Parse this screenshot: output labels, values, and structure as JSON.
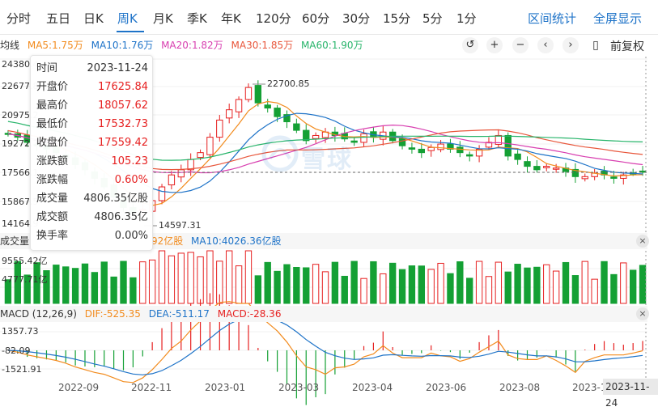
{
  "tabs": [
    {
      "label": "分时",
      "active": false
    },
    {
      "label": "五日",
      "active": false
    },
    {
      "label": "日K",
      "active": false
    },
    {
      "label": "周K",
      "active": true
    },
    {
      "label": "月K",
      "active": false
    },
    {
      "label": "季K",
      "active": false
    },
    {
      "label": "年K",
      "active": false
    },
    {
      "label": "120分",
      "active": false
    },
    {
      "label": "60分",
      "active": false
    },
    {
      "label": "30分",
      "active": false
    },
    {
      "label": "15分",
      "active": false
    },
    {
      "label": "5分",
      "active": false
    },
    {
      "label": "1分",
      "active": false
    }
  ],
  "header_links": {
    "interval_stats": "区间统计",
    "fullscreen": "全屏显示"
  },
  "ma_legend": {
    "label": "均线",
    "items": [
      {
        "text": "MA5:1.75万",
        "color": "#f28b1d"
      },
      {
        "text": "MA10:1.76万",
        "color": "#1e73c8"
      },
      {
        "text": "MA20:1.82万",
        "color": "#d83fb0"
      },
      {
        "text": "MA30:1.85万",
        "color": "#e8563b"
      },
      {
        "text": "MA60:1.90万",
        "color": "#27b46a"
      }
    ]
  },
  "toolbar": {
    "fuquan": "前复权"
  },
  "price_axis": [
    "24380.4",
    "22677.8",
    "20975.2",
    "19272.7",
    "17566.1",
    "15867.5",
    "14164.9"
  ],
  "price_annotations": {
    "high": "22700.85",
    "low": "14597.31"
  },
  "tooltip": [
    {
      "label": "时间",
      "value": "2023-11-24",
      "color": "#333333"
    },
    {
      "label": "开盘价",
      "value": "17625.84",
      "color": "#e62020"
    },
    {
      "label": "最高价",
      "value": "18057.62",
      "color": "#e62020"
    },
    {
      "label": "最低价",
      "value": "17532.73",
      "color": "#e62020"
    },
    {
      "label": "收盘价",
      "value": "17559.42",
      "color": "#e62020"
    },
    {
      "label": "涨跌额",
      "value": "105.23",
      "color": "#e62020"
    },
    {
      "label": "涨跌幅",
      "value": "0.60%",
      "color": "#e62020"
    },
    {
      "label": "成交量",
      "value": "4806.35亿股",
      "color": "#333333"
    },
    {
      "label": "成交额",
      "value": "4806.35亿",
      "color": "#333333"
    },
    {
      "label": "换手率",
      "value": "0.00%",
      "color": "#333333"
    }
  ],
  "volume_legend": {
    "label": "成交量",
    "ma5": "92亿股",
    "ma10": "MA10:4026.36亿股"
  },
  "volume_axis": {
    "top": "9555.42亿",
    "mid": "4777.71亿"
  },
  "macd_legend": {
    "label": "MACD (12,26,9)",
    "dif": "DIF:-525.35",
    "dea": "DEA:-511.17",
    "macd": "MACD:-28.36"
  },
  "macd_axis": [
    "1357.73",
    "-82.09",
    "-1521.91"
  ],
  "x_axis": [
    "2022-09",
    "2022-11",
    "2023-01",
    "2023-03",
    "2023-04",
    "2023-06",
    "2023-08",
    "2023-1"
  ],
  "x_highlight": "2023-11-24",
  "watermark": "雪球",
  "colors": {
    "up": "#e62020",
    "down": "#14a034",
    "accent": "#1e73c8"
  },
  "chart_data": {
    "type": "candlestick",
    "period": "weekly",
    "weeks": 67,
    "last": {
      "date": "2023-11-24",
      "open": 17625.84,
      "high": 18057.62,
      "low": 17532.73,
      "close": 17559.42
    },
    "visible_high": 22700.85,
    "visible_low": 14597.31,
    "ma": {
      "MA5": 17500,
      "MA10": 17600,
      "MA20": 18200,
      "MA30": 18500,
      "MA60": 19000
    },
    "closes": [
      19800,
      19600,
      19300,
      19100,
      18900,
      18700,
      18400,
      18000,
      17700,
      17200,
      16700,
      16100,
      15500,
      15200,
      15400,
      15900,
      16700,
      17400,
      17700,
      18300,
      18700,
      19600,
      20600,
      21200,
      21800,
      22500,
      21600,
      21300,
      20800,
      20500,
      20000,
      19400,
      19700,
      19900,
      19700,
      19500,
      19300,
      19800,
      19600,
      19900,
      19400,
      19100,
      18900,
      18700,
      19000,
      19200,
      18900,
      18700,
      18500,
      18900,
      19300,
      19700,
      18500,
      18300,
      17900,
      17700,
      17900,
      17800,
      17600,
      17300,
      17300,
      17500,
      17400,
      17200,
      17400,
      17500,
      17559.42
    ]
  }
}
